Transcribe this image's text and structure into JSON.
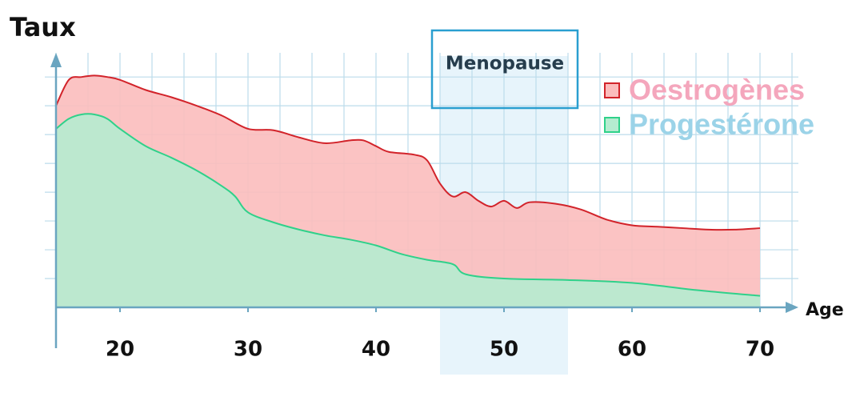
{
  "chart_data": {
    "type": "area",
    "y_label": "Taux",
    "x_label": "Age",
    "xlim": [
      15,
      73
    ],
    "ylim": [
      0,
      8.7
    ],
    "xticks": [
      20,
      30,
      40,
      50,
      60,
      70
    ],
    "xgrid": [
      15,
      17.5,
      20,
      22.5,
      25,
      27.5,
      30,
      32.5,
      35,
      37.5,
      40,
      42.5,
      45,
      47.5,
      50,
      52.5,
      55,
      57.5,
      60,
      62.5,
      65,
      67.5,
      70,
      72.5
    ],
    "ygrid": [
      1,
      2,
      3,
      4,
      5,
      6,
      7,
      8
    ],
    "grid": true,
    "legend": "upper right",
    "band": {
      "xlim": [
        45,
        55
      ],
      "label": "Menopause",
      "color": "#e3f2fa",
      "border": "#2a9fd0"
    },
    "series": [
      {
        "name": "Oestrogènes",
        "color": "#d2232a",
        "fill": "#fbbcbc",
        "label_color": "#f4a6bc",
        "x": [
          15,
          16,
          17,
          18,
          19,
          20,
          22,
          24,
          26,
          28,
          30,
          32,
          34,
          36,
          38,
          39,
          40,
          41,
          43,
          44,
          45,
          46,
          47,
          48,
          49,
          50,
          51,
          52,
          54,
          56,
          58,
          60,
          62,
          64,
          66,
          68,
          70
        ],
        "values": [
          7.0,
          7.9,
          8.0,
          8.05,
          8.0,
          7.9,
          7.55,
          7.3,
          7.0,
          6.65,
          6.2,
          6.15,
          5.9,
          5.7,
          5.8,
          5.8,
          5.6,
          5.4,
          5.3,
          5.1,
          4.3,
          3.85,
          4.0,
          3.7,
          3.5,
          3.7,
          3.45,
          3.65,
          3.6,
          3.4,
          3.05,
          2.85,
          2.8,
          2.75,
          2.7,
          2.7,
          2.75
        ]
      },
      {
        "name": "Progestérone",
        "color": "#2fd18a",
        "fill": "#b5ecd0",
        "label_color": "#9bd3e8",
        "x": [
          15,
          16,
          17,
          18,
          19,
          20,
          22,
          24,
          26,
          28,
          29,
          30,
          32,
          34,
          36,
          38,
          40,
          42,
          44,
          46,
          47,
          50,
          55,
          60,
          65,
          70
        ],
        "values": [
          6.2,
          6.55,
          6.7,
          6.7,
          6.55,
          6.2,
          5.6,
          5.2,
          4.75,
          4.2,
          3.85,
          3.3,
          2.95,
          2.7,
          2.5,
          2.35,
          2.15,
          1.85,
          1.65,
          1.5,
          1.15,
          1.0,
          0.95,
          0.85,
          0.6,
          0.4
        ]
      }
    ]
  }
}
